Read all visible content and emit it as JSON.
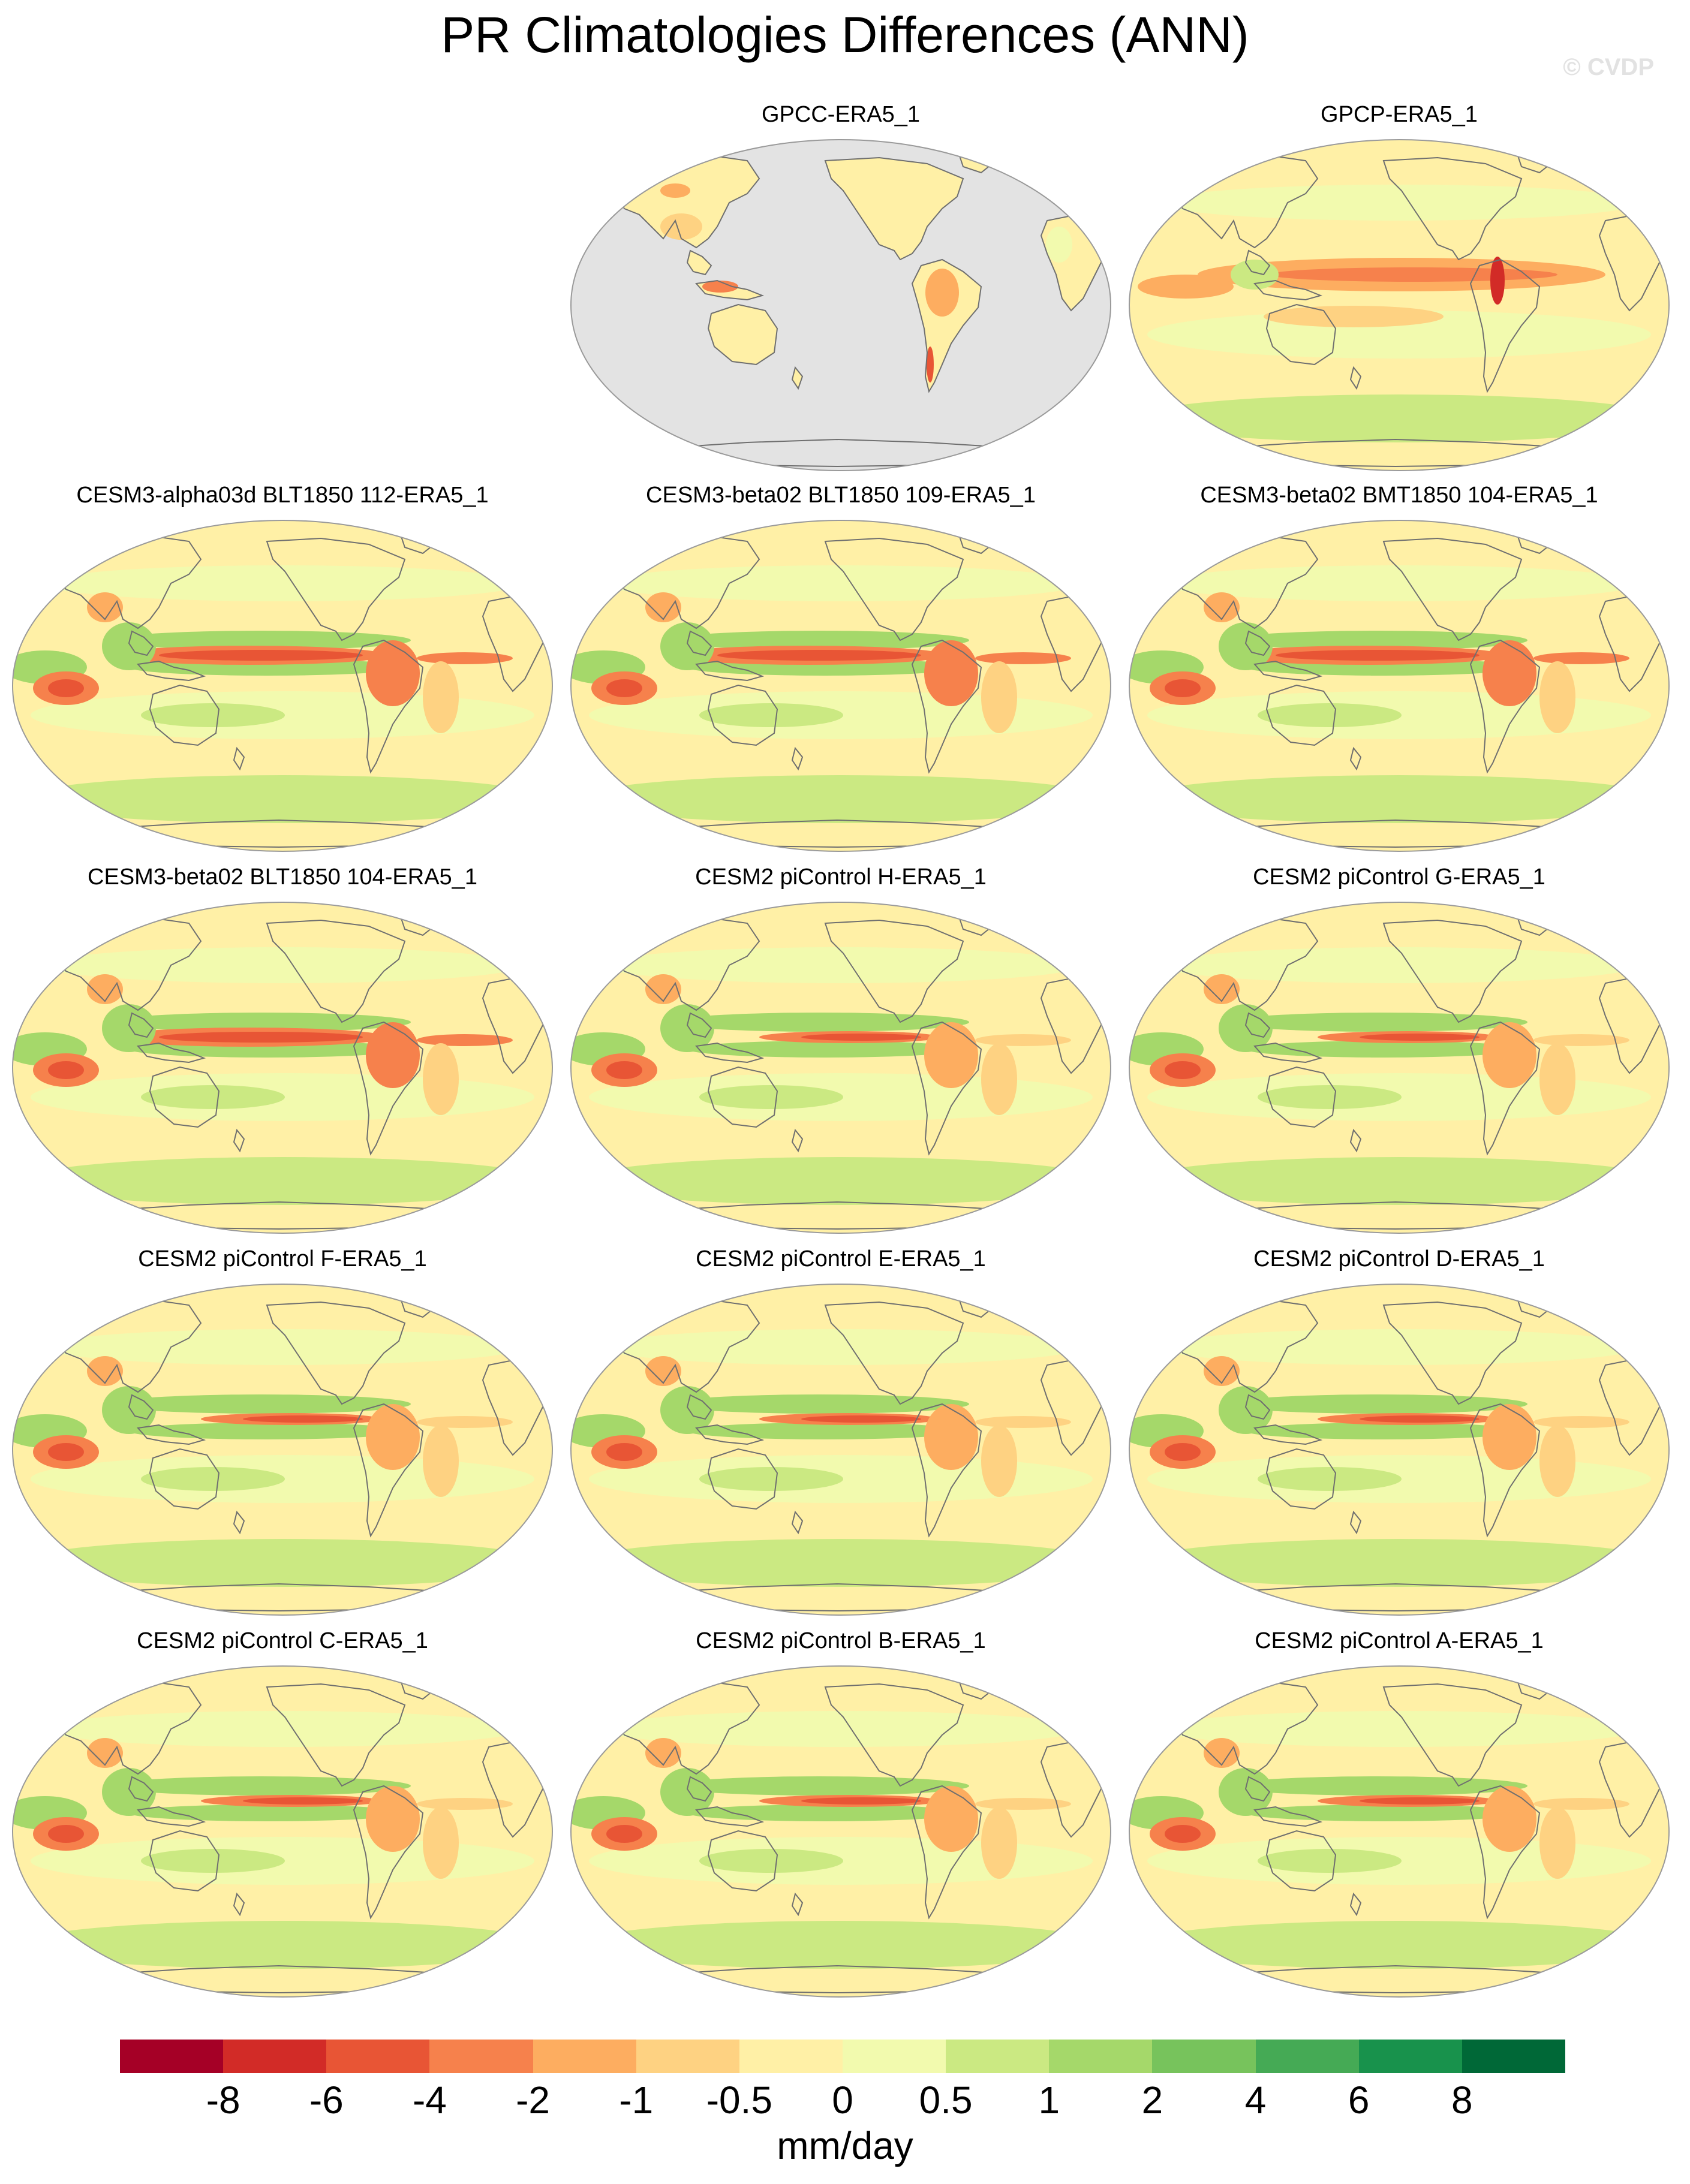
{
  "title": "PR Climatologies Differences (ANN)",
  "watermark": "© CVDP",
  "panels": [
    {
      "label": "GPCC-ERA5_1",
      "variant": "land-only"
    },
    {
      "label": "GPCP-ERA5_1",
      "variant": "obs"
    },
    {
      "label": "CESM3-alpha03d BLT1850 112-ERA5_1",
      "variant": "model-strong"
    },
    {
      "label": "CESM3-beta02 BLT1850 109-ERA5_1",
      "variant": "model-strong"
    },
    {
      "label": "CESM3-beta02 BMT1850 104-ERA5_1",
      "variant": "model-strong"
    },
    {
      "label": "CESM3-beta02 BLT1850 104-ERA5_1",
      "variant": "model-strong"
    },
    {
      "label": "CESM2 piControl H-ERA5_1",
      "variant": "model"
    },
    {
      "label": "CESM2 piControl G-ERA5_1",
      "variant": "model"
    },
    {
      "label": "CESM2 piControl F-ERA5_1",
      "variant": "model"
    },
    {
      "label": "CESM2 piControl E-ERA5_1",
      "variant": "model"
    },
    {
      "label": "CESM2 piControl D-ERA5_1",
      "variant": "model"
    },
    {
      "label": "CESM2 piControl C-ERA5_1",
      "variant": "model"
    },
    {
      "label": "CESM2 piControl B-ERA5_1",
      "variant": "model"
    },
    {
      "label": "CESM2 piControl A-ERA5_1",
      "variant": "model"
    }
  ],
  "colorbar": {
    "units": "mm/day",
    "levels": [
      "-8",
      "-6",
      "-4",
      "-2",
      "-1",
      "-0.5",
      "0",
      "0.5",
      "1",
      "2",
      "4",
      "6",
      "8"
    ],
    "colors": [
      "#a50026",
      "#d22b27",
      "#e85535",
      "#f6814c",
      "#fdad60",
      "#fed282",
      "#fff0a6",
      "#f2faae",
      "#cbe982",
      "#a5d86a",
      "#77c35c",
      "#45aa55",
      "#18924c",
      "#006837"
    ]
  },
  "map_colors": {
    "neutral": "#fff0a6",
    "land_missing": "#e3e3e3",
    "coastline": "#6f6f6f"
  }
}
